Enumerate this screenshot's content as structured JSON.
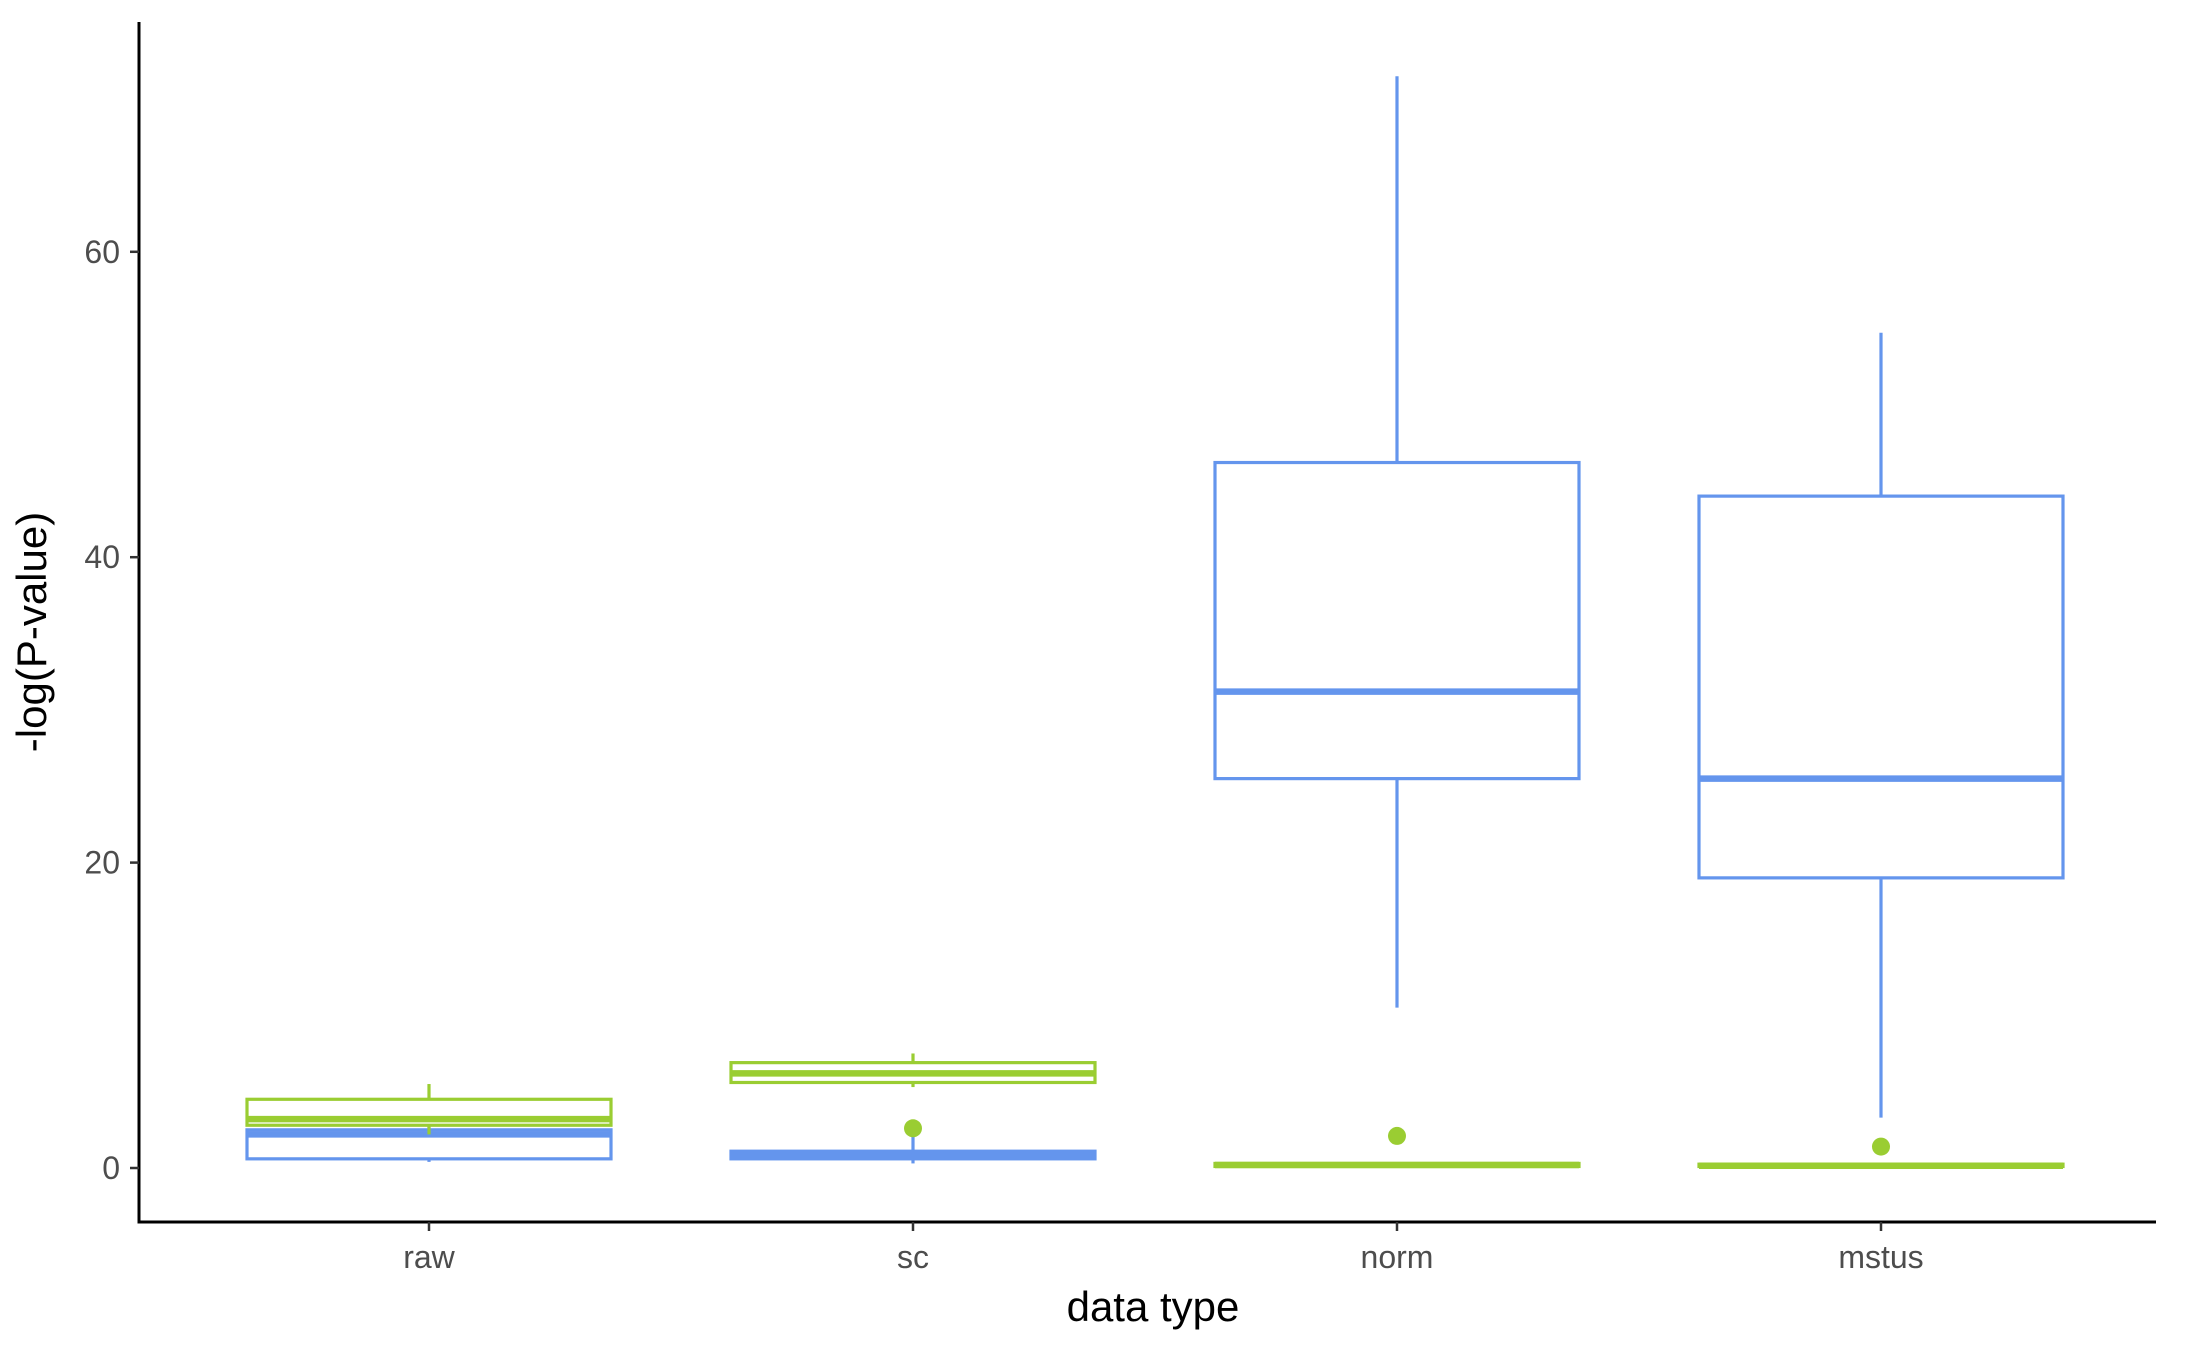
{
  "chart_data": {
    "type": "boxplot",
    "xlabel": "data type",
    "ylabel": "-log(P-value)",
    "categories": [
      "raw",
      "sc",
      "norm",
      "mstus"
    ],
    "yticks": [
      0,
      20,
      40,
      60
    ],
    "ylim": [
      -3.5,
      75
    ],
    "grid": false,
    "legend": "none",
    "series": [
      {
        "color": "#6495ED",
        "boxes": [
          {
            "category": "raw",
            "min": 0.4,
            "q1": 0.6,
            "median": 2.2,
            "q3": 2.5,
            "max": 2.7,
            "outliers": []
          },
          {
            "category": "sc",
            "min": 0.3,
            "q1": 0.6,
            "median": 0.8,
            "q3": 1.1,
            "max": 2.2,
            "outliers": []
          },
          {
            "category": "norm",
            "min": 10.5,
            "q1": 25.5,
            "median": 31.2,
            "q3": 46.2,
            "max": 71.5,
            "outliers": []
          },
          {
            "category": "mstus",
            "min": 3.3,
            "q1": 19.0,
            "median": 25.5,
            "q3": 44.0,
            "max": 54.7,
            "outliers": []
          }
        ]
      },
      {
        "color": "#9ACD32",
        "boxes": [
          {
            "category": "raw",
            "min": 2.2,
            "q1": 2.8,
            "median": 3.2,
            "q3": 4.5,
            "max": 5.5,
            "outliers": []
          },
          {
            "category": "sc",
            "min": 5.3,
            "q1": 5.6,
            "median": 6.2,
            "q3": 6.9,
            "max": 7.5,
            "outliers": [
              2.6
            ]
          },
          {
            "category": "norm",
            "min": 0.05,
            "q1": 0.1,
            "median": 0.2,
            "q3": 0.3,
            "max": 0.35,
            "outliers": [
              2.1
            ]
          },
          {
            "category": "mstus",
            "min": 0.05,
            "q1": 0.1,
            "median": 0.15,
            "q3": 0.25,
            "max": 0.3,
            "outliers": [
              1.4
            ]
          }
        ]
      }
    ]
  }
}
